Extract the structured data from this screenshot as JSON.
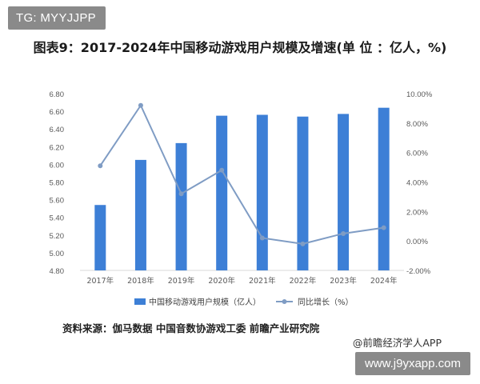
{
  "watermarks": {
    "tag": "TG: MYYJJPP",
    "url": "www.j9yxapp.com"
  },
  "colors": {
    "bar": "#3d7fd6",
    "line": "#7f9cc4",
    "axis_text": "#595959",
    "grid": "#ffffff"
  },
  "footer": {
    "source": "资料来源：伽马数据 中国音数协游戏工委 前瞻产业研究院",
    "credit": "@前瞻经济学人APP"
  },
  "chart_data": {
    "type": "bar",
    "title": "图表9：2017-2024年中国移动游戏用户规模及增速(单 位 ：亿人，%)",
    "categories": [
      "2017年",
      "2018年",
      "2019年",
      "2020年",
      "2021年",
      "2022年",
      "2023年",
      "2024年"
    ],
    "series": [
      {
        "name": "中国移动游戏用户规模（亿人）",
        "type": "bar",
        "axis": "left",
        "values": [
          5.54,
          6.05,
          6.24,
          6.55,
          6.56,
          6.54,
          6.57,
          6.64
        ]
      },
      {
        "name": "同比增长（%）",
        "type": "line",
        "axis": "right",
        "values": [
          5.1,
          9.2,
          3.2,
          4.8,
          0.2,
          -0.2,
          0.5,
          0.9
        ]
      }
    ],
    "y_left": {
      "min": 4.8,
      "max": 6.8,
      "ticks": [
        "4.80",
        "5.00",
        "5.20",
        "5.40",
        "5.60",
        "5.80",
        "6.00",
        "6.20",
        "6.40",
        "6.60",
        "6.80"
      ]
    },
    "y_right": {
      "min": -2,
      "max": 10,
      "ticks": [
        "-2.00%",
        "0.00%",
        "2.00%",
        "4.00%",
        "6.00%",
        "8.00%",
        "10.00%"
      ]
    },
    "legend_position": "bottom"
  }
}
